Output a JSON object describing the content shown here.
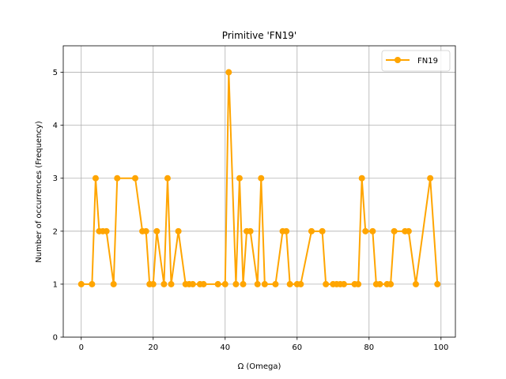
{
  "chart_data": {
    "type": "line",
    "title": "Primitive 'FN19'",
    "xlabel": "Ω (Omega)",
    "ylabel": "Number of occurrences (Frequency)",
    "xlim": [
      -5,
      104
    ],
    "ylim": [
      0,
      5.5
    ],
    "xticks": [
      0,
      20,
      40,
      60,
      80,
      100
    ],
    "yticks": [
      0,
      1,
      2,
      3,
      4,
      5
    ],
    "grid": true,
    "legend_position": "top-right",
    "series": [
      {
        "name": "FN19",
        "color": "#FFA500",
        "marker": "circle",
        "x": [
          0,
          3,
          4,
          5,
          6,
          7,
          9,
          10,
          15,
          17,
          18,
          19,
          20,
          21,
          23,
          24,
          25,
          27,
          29,
          30,
          31,
          33,
          34,
          38,
          40,
          41,
          43,
          44,
          45,
          46,
          47,
          49,
          50,
          51,
          54,
          56,
          57,
          58,
          60,
          61,
          64,
          67,
          68,
          70,
          71,
          72,
          73,
          76,
          77,
          78,
          79,
          81,
          82,
          83,
          85,
          86,
          87,
          90,
          91,
          93,
          97,
          99
        ],
        "y": [
          1,
          1,
          3,
          2,
          2,
          2,
          1,
          3,
          3,
          2,
          2,
          1,
          1,
          2,
          1,
          3,
          1,
          2,
          1,
          1,
          1,
          1,
          1,
          1,
          1,
          5,
          1,
          3,
          1,
          2,
          2,
          1,
          3,
          1,
          1,
          2,
          2,
          1,
          1,
          1,
          2,
          2,
          1,
          1,
          1,
          1,
          1,
          1,
          1,
          3,
          2,
          2,
          1,
          1,
          1,
          1,
          2,
          2,
          2,
          1,
          3,
          1
        ]
      }
    ]
  }
}
